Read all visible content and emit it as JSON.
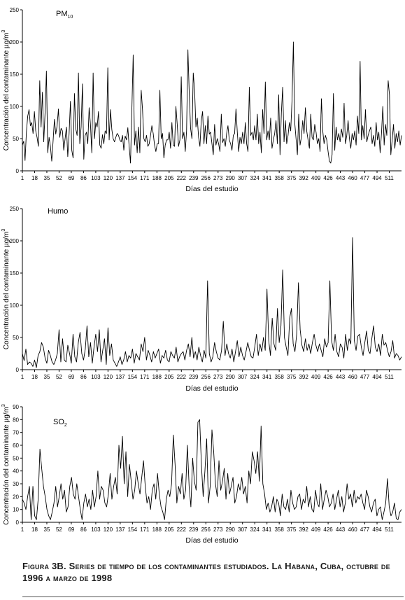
{
  "caption": "Figura 3B. Series de tiempo de los contaminantes estudiados. La Habana, Cuba, octubre de 1996 a marzo de 1998",
  "chart_data": [
    {
      "type": "line",
      "title_main": "PM",
      "title_sub": "10",
      "ylabel": "Concentración del contaminante µg/m",
      "ylabel_sup": "3",
      "xlabel": "Días del estudio",
      "xlim": [
        1,
        528
      ],
      "ylim": [
        0,
        250
      ],
      "yticks": [
        0,
        50,
        100,
        150,
        200,
        250
      ],
      "xticks": [
        1,
        18,
        35,
        52,
        69,
        86,
        103,
        120,
        137,
        154,
        171,
        188,
        205,
        222,
        239,
        256,
        273,
        290,
        307,
        324,
        341,
        358,
        375,
        392,
        409,
        426,
        443,
        460,
        477,
        494,
        511
      ],
      "series": [
        {
          "values": [
            40,
            46,
            16,
            60,
            85,
            95,
            70,
            75,
            58,
            92,
            62,
            52,
            38,
            140,
            68,
            122,
            45,
            90,
            155,
            28,
            52,
            38,
            15,
            46,
            80,
            57,
            70,
            96,
            52,
            66,
            62,
            32,
            50,
            68,
            22,
            58,
            108,
            32,
            20,
            120,
            65,
            55,
            152,
            42,
            68,
            135,
            18,
            55,
            60,
            42,
            98,
            72,
            28,
            152,
            50,
            75,
            68,
            92,
            40,
            35,
            56,
            42,
            62,
            58,
            160,
            48,
            95,
            64,
            50,
            45,
            52,
            58,
            55,
            48,
            45,
            55,
            32,
            54,
            48,
            67,
            37,
            12,
            95,
            180,
            40,
            62,
            28,
            68,
            28,
            125,
            95,
            50,
            45,
            55,
            38,
            42,
            55,
            70,
            58,
            40,
            30,
            42,
            42,
            125,
            50,
            58,
            20,
            40,
            48,
            48,
            60,
            35,
            75,
            40,
            38,
            100,
            72,
            38,
            48,
            146,
            50,
            60,
            30,
            62,
            188,
            120,
            66,
            50,
            152,
            125,
            68,
            82,
            52,
            38,
            78,
            92,
            42,
            70,
            42,
            85,
            57,
            60,
            42,
            25,
            72,
            40,
            50,
            42,
            30,
            88,
            44,
            50,
            38,
            58,
            70,
            48,
            42,
            32,
            55,
            58,
            96,
            60,
            30,
            52,
            42,
            60,
            42,
            75,
            42,
            30,
            130,
            55,
            60,
            48,
            70,
            48,
            88,
            42,
            60,
            28,
            95,
            58,
            138,
            48,
            62,
            48,
            82,
            35,
            48,
            58,
            78,
            42,
            118,
            25,
            90,
            130,
            45,
            78,
            42,
            55,
            75,
            62,
            110,
            200,
            75,
            50,
            25,
            88,
            40,
            52,
            78,
            58,
            98,
            62,
            48,
            35,
            88,
            52,
            48,
            72,
            60,
            42,
            50,
            30,
            112,
            62,
            42,
            55,
            48,
            30,
            15,
            12,
            25,
            120,
            32,
            68,
            48,
            58,
            45,
            65,
            52,
            105,
            42,
            55,
            78,
            50,
            35,
            58,
            48,
            62,
            40,
            85,
            58,
            170,
            48,
            70,
            50,
            95,
            45,
            55,
            62,
            68,
            42,
            55,
            38,
            75,
            48,
            60,
            28,
            58,
            100,
            40,
            72,
            55,
            140,
            118,
            25,
            48,
            72,
            35,
            58,
            45,
            62,
            40,
            55
          ]
        }
      ]
    },
    {
      "type": "line",
      "title_main": "Humo",
      "title_sub": "",
      "ylabel": "Concentración del contaminante µg/m",
      "ylabel_sup": "3",
      "xlabel": "Días del estudio",
      "xlim": [
        1,
        528
      ],
      "ylim": [
        0,
        250
      ],
      "yticks": [
        0,
        50,
        100,
        150,
        200,
        250
      ],
      "xticks": [
        1,
        18,
        35,
        52,
        69,
        86,
        103,
        120,
        137,
        154,
        171,
        188,
        205,
        222,
        239,
        256,
        273,
        290,
        307,
        324,
        341,
        358,
        375,
        392,
        409,
        426,
        443,
        460,
        477,
        494,
        511
      ],
      "series": [
        {
          "values": [
            25,
            14,
            32,
            8,
            12,
            10,
            5,
            15,
            3,
            22,
            28,
            42,
            35,
            18,
            10,
            30,
            22,
            12,
            8,
            15,
            25,
            62,
            12,
            48,
            15,
            12,
            38,
            25,
            10,
            55,
            20,
            12,
            42,
            58,
            25,
            15,
            32,
            68,
            20,
            42,
            10,
            35,
            55,
            28,
            62,
            12,
            30,
            48,
            8,
            65,
            22,
            40,
            15,
            10,
            5,
            12,
            20,
            8,
            15,
            28,
            12,
            22,
            18,
            32,
            10,
            25,
            20,
            15,
            40,
            28,
            50,
            15,
            30,
            22,
            12,
            28,
            18,
            25,
            32,
            10,
            22,
            18,
            30,
            15,
            12,
            28,
            22,
            18,
            35,
            12,
            20,
            25,
            28,
            15,
            30,
            40,
            20,
            50,
            18,
            28,
            15,
            35,
            22,
            12,
            30,
            18,
            138,
            25,
            12,
            20,
            42,
            28,
            18,
            15,
            30,
            75,
            22,
            40,
            25,
            18,
            32,
            12,
            28,
            45,
            20,
            35,
            22,
            15,
            28,
            42,
            30,
            20,
            18,
            35,
            55,
            22,
            40,
            28,
            50,
            30,
            125,
            45,
            22,
            80,
            40,
            30,
            95,
            42,
            68,
            155,
            50,
            35,
            22,
            80,
            95,
            40,
            28,
            55,
            135,
            62,
            38,
            28,
            48,
            30,
            40,
            25,
            42,
            55,
            38,
            28,
            40,
            30,
            20,
            48,
            35,
            42,
            138,
            45,
            30,
            55,
            28,
            20,
            40,
            35,
            18,
            55,
            30,
            48,
            40,
            205,
            45,
            30,
            52,
            55,
            35,
            22,
            42,
            60,
            30,
            25,
            48,
            68,
            35,
            28,
            40,
            22,
            55,
            38,
            42,
            30,
            20,
            28,
            45,
            18,
            25,
            22,
            15,
            20
          ]
        }
      ]
    },
    {
      "type": "line",
      "title_main": "SO",
      "title_sub": "2",
      "ylabel": "Concentración del contaminante µg/m",
      "ylabel_sup": "3",
      "xlabel": "Días del estudio",
      "xlim": [
        1,
        528
      ],
      "ylim": [
        0,
        90
      ],
      "yticks": [
        0,
        10,
        20,
        30,
        40,
        50,
        60,
        70,
        80,
        90
      ],
      "xticks": [
        1,
        18,
        35,
        52,
        69,
        86,
        103,
        120,
        137,
        154,
        171,
        188,
        205,
        222,
        239,
        256,
        273,
        290,
        307,
        324,
        341,
        358,
        375,
        392,
        409,
        426,
        443,
        460,
        477,
        494,
        511
      ],
      "series": [
        {
          "values": [
            18,
            15,
            10,
            20,
            28,
            2,
            28,
            5,
            2,
            18,
            57,
            42,
            28,
            20,
            10,
            5,
            2,
            8,
            15,
            28,
            12,
            20,
            30,
            18,
            25,
            8,
            12,
            28,
            35,
            22,
            18,
            30,
            20,
            10,
            2,
            15,
            22,
            12,
            18,
            10,
            25,
            12,
            20,
            40,
            18,
            28,
            25,
            15,
            12,
            22,
            38,
            18,
            28,
            35,
            22,
            60,
            42,
            67,
            30,
            55,
            20,
            45,
            32,
            18,
            25,
            40,
            30,
            22,
            35,
            48,
            28,
            15,
            20,
            10,
            25,
            30,
            18,
            38,
            22,
            12,
            8,
            2,
            18,
            25,
            20,
            30,
            68,
            45,
            15,
            28,
            22,
            38,
            18,
            25,
            60,
            28,
            12,
            50,
            32,
            25,
            78,
            80,
            45,
            20,
            40,
            65,
            15,
            28,
            72,
            55,
            30,
            20,
            48,
            25,
            32,
            42,
            18,
            38,
            22,
            28,
            35,
            15,
            20,
            30,
            25,
            35,
            22,
            28,
            15,
            40,
            30,
            55,
            48,
            38,
            55,
            32,
            75,
            30,
            22,
            10,
            15,
            8,
            12,
            20,
            8,
            18,
            15,
            5,
            22,
            12,
            10,
            18,
            8,
            25,
            15,
            10,
            12,
            20,
            22,
            10,
            18,
            15,
            28,
            12,
            20,
            10,
            8,
            25,
            15,
            12,
            30,
            10,
            18,
            25,
            20,
            12,
            15,
            22,
            10,
            18,
            25,
            12,
            20,
            8,
            15,
            30,
            18,
            22,
            12,
            25,
            15,
            20,
            18,
            22,
            15,
            10,
            25,
            20,
            12,
            8,
            15,
            18,
            5,
            10,
            12,
            2,
            8,
            15,
            34,
            12,
            5,
            8,
            15,
            3,
            2,
            8,
            10
          ]
        }
      ]
    }
  ]
}
